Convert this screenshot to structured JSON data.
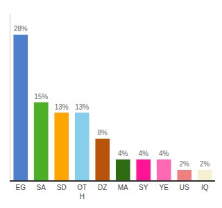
{
  "chart_data": {
    "type": "bar",
    "categories": [
      "EG",
      "SA",
      "SD",
      "OT\nH",
      "DZ",
      "MA",
      "SY",
      "YE",
      "US",
      "IQ"
    ],
    "values": [
      28,
      15,
      13,
      13,
      8,
      4,
      4,
      4,
      2,
      2
    ],
    "value_labels": [
      "28%",
      "15%",
      "13%",
      "13%",
      "8%",
      "4%",
      "4%",
      "4%",
      "2%",
      "2%"
    ],
    "data_labels": true,
    "colors": [
      "#4d7fcc",
      "#4caf24",
      "#ffa500",
      "#87ceeb",
      "#b8530a",
      "#2e6b10",
      "#ff1493",
      "#ff69b4",
      "#f08080",
      "#f5f0d0"
    ],
    "ylim": [
      0,
      32
    ],
    "grid": false,
    "tick_labels": "x"
  }
}
